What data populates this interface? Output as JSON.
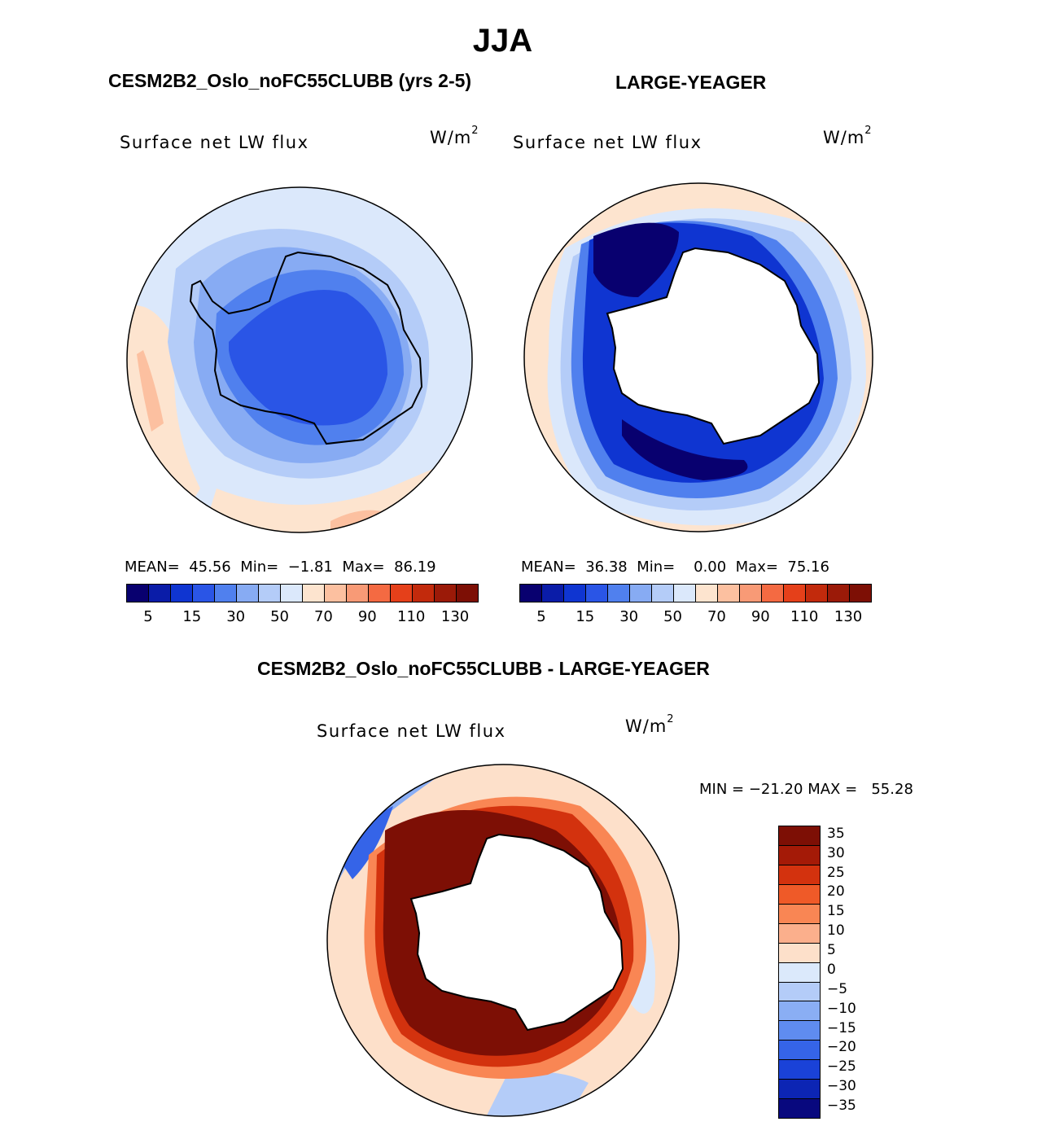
{
  "season": "JJA",
  "colors": {
    "seq_palette": [
      "#08006f",
      "#0a1ca8",
      "#0f35d1",
      "#2a55e6",
      "#5080ee",
      "#87abf3",
      "#b4ccf8",
      "#dbe8fb",
      "#fde4cf",
      "#fcc0a0",
      "#f89a76",
      "#f46a42",
      "#e5401a",
      "#c22a0c",
      "#9b1a08",
      "#7d0f05"
    ],
    "div_palette": [
      "#7d0f05",
      "#a41a07",
      "#d3320e",
      "#ef5a28",
      "#f98654",
      "#fbaf8c",
      "#fde0ca",
      "#dbe9fb",
      "#b4ccf8",
      "#8aaef4",
      "#5f8cf0",
      "#3564e8",
      "#1a42d8",
      "#0c25b4",
      "#08087e"
    ],
    "land": "#ffffff",
    "coast": "#000000"
  },
  "chart_data": [
    {
      "type": "heatmap",
      "title": "CESM2B2_Oslo_noFC55CLUBB (yrs 2-5)",
      "variable": "Surface net LW flux",
      "units_base": "W/m",
      "units_exp": "2",
      "projection": "south polar stereographic",
      "stats": {
        "mean_label": "MEAN=",
        "mean": "45.56",
        "min_label": "Min=",
        "min": "−1.81",
        "max_label": "Max=",
        "max": "86.19"
      },
      "colorbar_ticks": [
        "5",
        "15",
        "30",
        "50",
        "70",
        "90",
        "110",
        "130"
      ]
    },
    {
      "type": "heatmap",
      "title": "LARGE-YEAGER",
      "variable": "Surface net LW flux",
      "units_base": "W/m",
      "units_exp": "2",
      "projection": "south polar stereographic",
      "stats": {
        "mean_label": "MEAN=",
        "mean": "36.38",
        "min_label": "Min=",
        "min": "0.00",
        "max_label": "Max=",
        "max": "75.16"
      },
      "colorbar_ticks": [
        "5",
        "15",
        "30",
        "50",
        "70",
        "90",
        "110",
        "130"
      ]
    },
    {
      "type": "heatmap",
      "title": "CESM2B2_Oslo_noFC55CLUBB - LARGE-YEAGER",
      "variable": "Surface net LW flux",
      "units_base": "W/m",
      "units_exp": "2",
      "projection": "south polar stereographic",
      "stats": {
        "min_label": "MIN =",
        "min": "−21.20",
        "max_label": "MAX =",
        "max": "55.28"
      },
      "colorbar_ticks": [
        "35",
        "30",
        "25",
        "20",
        "15",
        "10",
        "5",
        "0",
        "−5",
        "−10",
        "−15",
        "−20",
        "−25",
        "−30",
        "−35"
      ]
    }
  ]
}
